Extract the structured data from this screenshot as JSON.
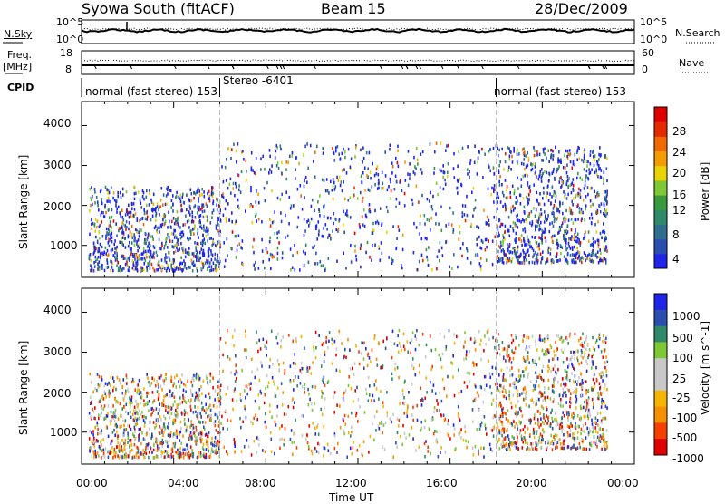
{
  "header": {
    "station": "Syowa South (fitACF)",
    "beam": "Beam 15",
    "date": "28/Dec/2009"
  },
  "left_labels": {
    "nsky": "N.Sky",
    "freq": "Freq.",
    "freq_unit": "[MHz]",
    "cpid": "CPID"
  },
  "right_labels": {
    "nsearch": "N.Search",
    "nave": "Nave"
  },
  "noise_panel": {
    "left_ticks": [
      "10^5",
      "10^0"
    ],
    "right_ticks": [
      "10^5",
      "10^0"
    ]
  },
  "freq_panel": {
    "left_ticks": [
      "18",
      "8"
    ],
    "right_ticks": [
      "60",
      "0"
    ]
  },
  "cpid_panel": {
    "segments": [
      {
        "label": "normal (fast stereo) 153",
        "start_hour": 0
      },
      {
        "label": "Stereo -6401",
        "start_hour": 6
      },
      {
        "label": "normal (fast stereo) 153",
        "start_hour": 18
      }
    ]
  },
  "colors": {
    "power": [
      "#1e24e8",
      "#2b4fb0",
      "#2e6e8e",
      "#2f8a6a",
      "#3a9a3e",
      "#7ec834",
      "#e8d400",
      "#f59c00",
      "#f06a00",
      "#e62a00",
      "#e00000"
    ],
    "velocity": [
      "#e00000",
      "#f54000",
      "#f59000",
      "#f5b400",
      "#c8c8c8",
      "#c8c8c8",
      "#7ec834",
      "#2f8a6a",
      "#2b4fb0",
      "#1e24e8"
    ]
  },
  "chart_data": [
    {
      "type": "heatmap",
      "ylabel": "Slant Range [km]",
      "colorbar_label": "Power [dB]",
      "colorbar_ticks": [
        "4",
        "8",
        "12",
        "16",
        "20",
        "24",
        "28"
      ],
      "colorbar_range": [
        0,
        32
      ],
      "ylim": [
        200,
        4600
      ],
      "y_ticks": [
        "1000",
        "2000",
        "3000",
        "4000"
      ],
      "xlim_hours": [
        0,
        24
      ],
      "gaps_hours": [
        6,
        18
      ],
      "scatter_regions": [
        {
          "t0": 0.3,
          "t1": 6,
          "r0": 400,
          "r1": 2500,
          "density": "high",
          "level_db": 8
        },
        {
          "t0": 6,
          "t1": 18,
          "r0": 400,
          "r1": 3600,
          "density": "sparse",
          "level_db": 6
        },
        {
          "t0": 18,
          "t1": 22.8,
          "r0": 600,
          "r1": 3500,
          "density": "high",
          "level_db": 8
        }
      ]
    },
    {
      "type": "heatmap",
      "ylabel": "Slant Range [km]",
      "colorbar_label": "Velocity [m s^-1]",
      "colorbar_ticks": [
        "-1000",
        "-500",
        "-100",
        "-25",
        "25",
        "100",
        "500",
        "1000"
      ],
      "ylim": [
        200,
        4600
      ],
      "y_ticks": [
        "1000",
        "2000",
        "3000",
        "4000"
      ],
      "x_ticks": [
        "00:00",
        "04:00",
        "08:00",
        "12:00",
        "16:00",
        "20:00",
        "00:00"
      ],
      "xlabel": "Time UT",
      "xlim_hours": [
        0,
        24
      ],
      "gaps_hours": [
        6,
        18
      ],
      "scatter_regions": [
        {
          "t0": 0.3,
          "t1": 6,
          "r0": 400,
          "r1": 2500,
          "density": "high"
        },
        {
          "t0": 6,
          "t1": 18,
          "r0": 400,
          "r1": 3600,
          "density": "sparse"
        },
        {
          "t0": 18,
          "t1": 22.8,
          "r0": 600,
          "r1": 3500,
          "density": "high"
        }
      ]
    }
  ]
}
